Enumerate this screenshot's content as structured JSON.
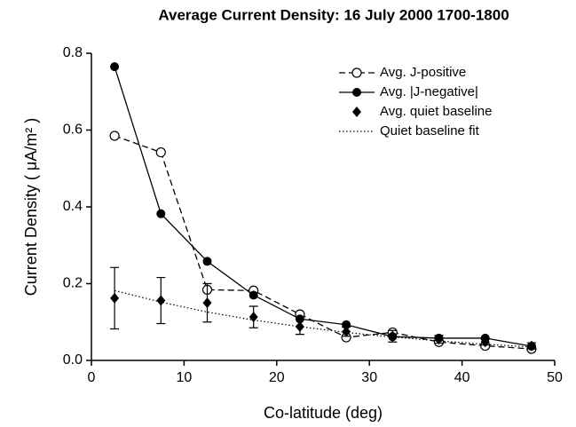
{
  "chart_data": {
    "type": "line",
    "title": "Average Current Density: 16 July 2000 1700-1800",
    "x_label": "Co-latitude (deg)",
    "y_label": "Current Density ( μA/m² )",
    "x": [
      2.5,
      7.5,
      12.5,
      17.5,
      22.5,
      27.5,
      32.5,
      37.5,
      42.5,
      47.5
    ],
    "xlim": [
      0,
      50
    ],
    "xticks": [
      0,
      10,
      20,
      30,
      40,
      50
    ],
    "ylim": [
      0,
      0.8
    ],
    "yticks": [
      {
        "value": 0,
        "label": "0.0"
      },
      {
        "value": 0.2,
        "label": "0.2"
      },
      {
        "value": 0.4,
        "label": "0.4"
      },
      {
        "value": 0.6,
        "label": "0.6"
      },
      {
        "value": 0.8,
        "label": "0.8"
      }
    ],
    "legend": "upper right",
    "series": [
      {
        "name": "Avg. J-positive",
        "color": "#000000",
        "line_style": "dashed",
        "marker": "open-circle",
        "values": [
          0.585,
          0.542,
          0.184,
          0.182,
          0.12,
          0.06,
          0.073,
          0.048,
          0.038,
          0.03
        ]
      },
      {
        "name": "Avg. |J-negative|",
        "color": "#000000",
        "line_style": "solid",
        "marker": "filled-circle",
        "values": [
          0.765,
          0.382,
          0.258,
          0.17,
          0.108,
          0.093,
          0.062,
          0.058,
          0.058,
          0.037
        ]
      },
      {
        "name": "Avg. quiet baseline",
        "color": "#000000",
        "line_style": "none",
        "marker": "diamond",
        "values": [
          0.162,
          0.156,
          0.15,
          0.113,
          0.088,
          0.075,
          0.063,
          0.055,
          0.048,
          0.038
        ],
        "errors": [
          0.08,
          0.06,
          0.05,
          0.028,
          0.02,
          0.012,
          0.015,
          0.01,
          0.008,
          0.008
        ]
      },
      {
        "name": "Quiet baseline fit",
        "color": "#000000",
        "line_style": "dotted",
        "marker": "none",
        "values": [
          0.182,
          0.152,
          0.126,
          0.105,
          0.088,
          0.073,
          0.061,
          0.051,
          0.042,
          0.035
        ]
      }
    ]
  }
}
